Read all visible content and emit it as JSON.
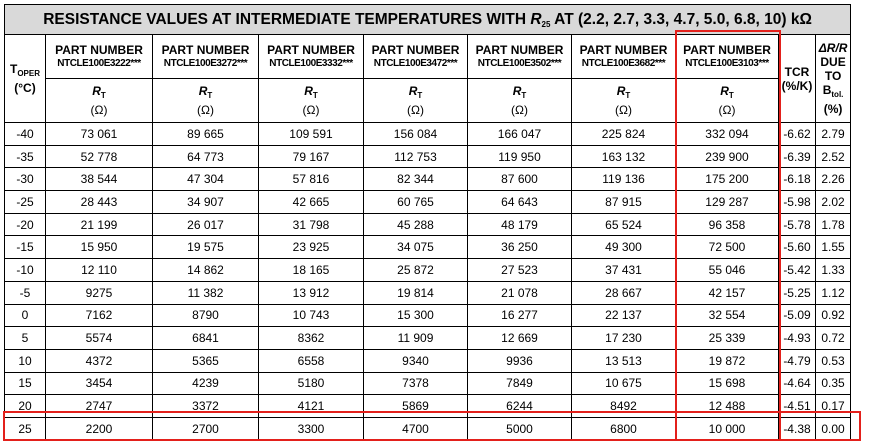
{
  "title": {
    "text": "RESISTANCE VALUES AT INTERMEDIATE TEMPERATURES WITH ",
    "symbol": "R",
    "subscript": "25",
    "suffix": " AT (2.2, 2.7, 3.3, 4.7, 5.0, 6.8, 10) kΩ"
  },
  "table": {
    "temp_header": {
      "symbol": "T",
      "subscript": "OPER",
      "unit": "(°C)"
    },
    "parts": [
      {
        "label": "PART NUMBER",
        "code": "NTCLE100E3222***",
        "symbol": "R",
        "subscript": "T",
        "unit": "(Ω)"
      },
      {
        "label": "PART NUMBER",
        "code": "NTCLE100E3272***",
        "symbol": "R",
        "subscript": "T",
        "unit": "(Ω)"
      },
      {
        "label": "PART NUMBER",
        "code": "NTCLE100E3332***",
        "symbol": "R",
        "subscript": "T",
        "unit": "(Ω)"
      },
      {
        "label": "PART NUMBER",
        "code": "NTCLE100E3472***",
        "symbol": "R",
        "subscript": "T",
        "unit": "(Ω)"
      },
      {
        "label": "PART NUMBER",
        "code": "NTCLE100E3502***",
        "symbol": "R",
        "subscript": "T",
        "unit": "(Ω)"
      },
      {
        "label": "PART NUMBER",
        "code": "NTCLE100E3682***",
        "symbol": "R",
        "subscript": "T",
        "unit": "(Ω)"
      },
      {
        "label": "PART NUMBER",
        "code": "NTCLE100E3103***",
        "symbol": "R",
        "subscript": "T",
        "unit": "(Ω)"
      }
    ],
    "tcr_header": {
      "label": "TCR",
      "unit": "(%/K)"
    },
    "tol_header": {
      "label": "ΔR/R",
      "line2": "DUE",
      "line3": "TO",
      "symbol": "B",
      "subscript": "tol.",
      "unit": "(%)"
    },
    "rows": [
      [
        "-40",
        "73 061",
        "89 665",
        "109 591",
        "156 084",
        "166 047",
        "225 824",
        "332 094",
        "-6.62",
        "2.79"
      ],
      [
        "-35",
        "52 778",
        "64 773",
        "79 167",
        "112 753",
        "119 950",
        "163 132",
        "239 900",
        "-6.39",
        "2.52"
      ],
      [
        "-30",
        "38 544",
        "47 304",
        "57 816",
        "82 344",
        "87 600",
        "119 136",
        "175 200",
        "-6.18",
        "2.26"
      ],
      [
        "-25",
        "28 443",
        "34 907",
        "42 665",
        "60 765",
        "64 643",
        "87 915",
        "129 287",
        "-5.98",
        "2.02"
      ],
      [
        "-20",
        "21 199",
        "26 017",
        "31 798",
        "45 288",
        "48 179",
        "65 524",
        "96 358",
        "-5.78",
        "1.78"
      ],
      [
        "-15",
        "15 950",
        "19 575",
        "23 925",
        "34 075",
        "36 250",
        "49 300",
        "72 500",
        "-5.60",
        "1.55"
      ],
      [
        "-10",
        "12 110",
        "14 862",
        "18 165",
        "25 872",
        "27 523",
        "37 431",
        "55 046",
        "-5.42",
        "1.33"
      ],
      [
        "-5",
        "9275",
        "11 382",
        "13 912",
        "19 814",
        "21 078",
        "28 667",
        "42 157",
        "-5.25",
        "1.12"
      ],
      [
        "0",
        "7162",
        "8790",
        "10 743",
        "15 300",
        "16 277",
        "22 137",
        "32 554",
        "-5.09",
        "0.92"
      ],
      [
        "5",
        "5574",
        "6841",
        "8362",
        "11 909",
        "12 669",
        "17 230",
        "25 339",
        "-4.93",
        "0.72"
      ],
      [
        "10",
        "4372",
        "5365",
        "6558",
        "9340",
        "9936",
        "13 513",
        "19 872",
        "-4.79",
        "0.53"
      ],
      [
        "15",
        "3454",
        "4239",
        "5180",
        "7378",
        "7849",
        "10 675",
        "15 698",
        "-4.64",
        "0.35"
      ],
      [
        "20",
        "2747",
        "3372",
        "4121",
        "5869",
        "6244",
        "8492",
        "12 488",
        "-4.51",
        "0.17"
      ],
      [
        "25",
        "2200",
        "2700",
        "3300",
        "4700",
        "5000",
        "6800",
        "10 000",
        "-4.38",
        "0.00"
      ]
    ]
  }
}
